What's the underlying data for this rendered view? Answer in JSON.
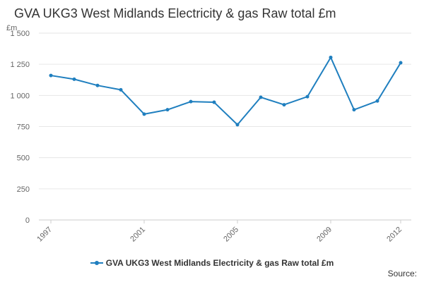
{
  "chart_data": {
    "type": "line",
    "title": "GVA UKG3 West Midlands Electricity & gas Raw total £m",
    "unit_label": "£m",
    "x": [
      1997,
      1998,
      1999,
      2000,
      2001,
      2002,
      2003,
      2004,
      2005,
      2006,
      2007,
      2008,
      2009,
      2010,
      2011,
      2012
    ],
    "x_tick_labels": [
      "1997",
      "2001",
      "2005",
      "2009",
      "2012"
    ],
    "y_tick_labels": [
      "0",
      "250",
      "500",
      "750",
      "1 000",
      "1 250",
      "1 500"
    ],
    "y_ticks": [
      0,
      250,
      500,
      750,
      1000,
      1250,
      1500
    ],
    "ylim": [
      0,
      1500
    ],
    "series": [
      {
        "name": "GVA UKG3 West Midlands Electricity & gas Raw total £m",
        "color": "#1f7fbf",
        "values": [
          1160,
          1130,
          1080,
          1045,
          850,
          885,
          950,
          945,
          765,
          985,
          925,
          990,
          1305,
          885,
          955,
          1262
        ]
      }
    ],
    "grid": true,
    "legend_position": "bottom",
    "source_label": "Source:"
  }
}
